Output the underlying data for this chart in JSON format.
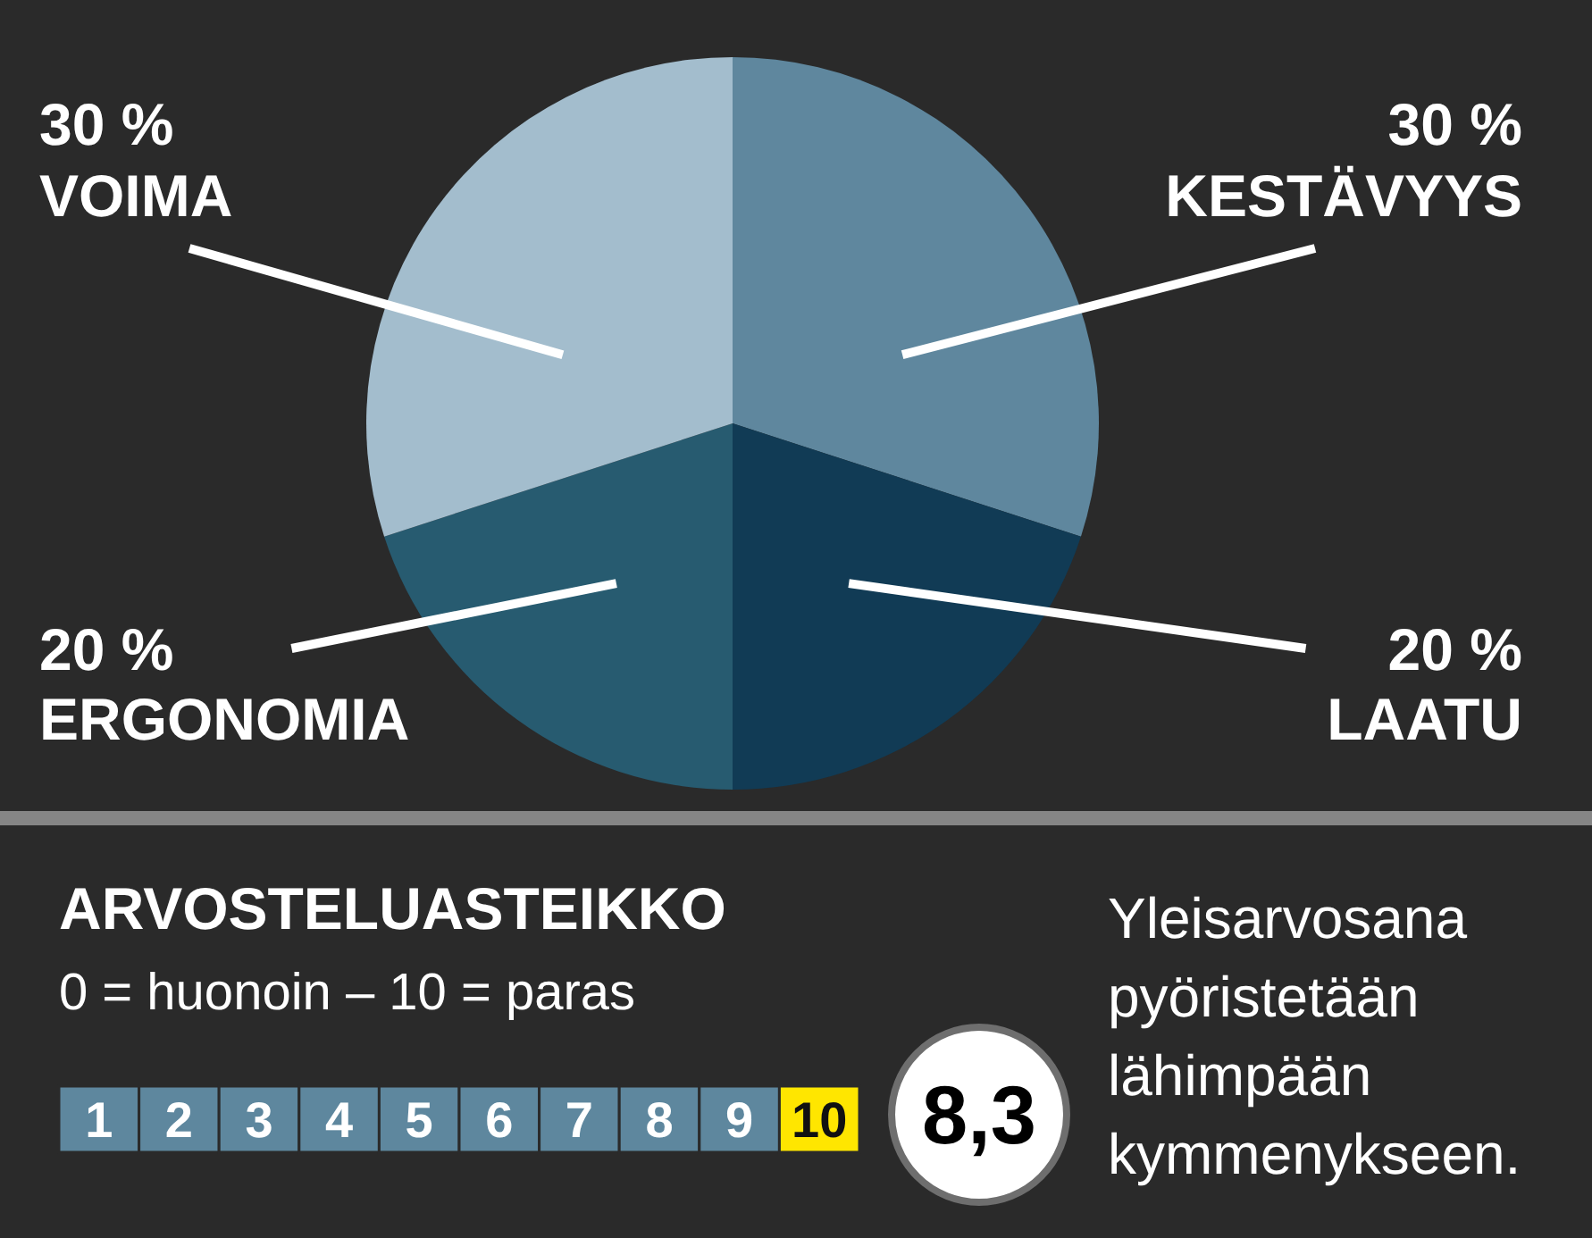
{
  "chart_data": [
    {
      "type": "pie",
      "categories": [
        "KESTÄVYYS",
        "LAATU",
        "ERGONOMIA",
        "VOIMA"
      ],
      "values": [
        30,
        20,
        20,
        30
      ],
      "colors": [
        "#5f879e",
        "#113b55",
        "#275b70",
        "#a3bdcd"
      ],
      "value_labels": [
        "30 %",
        "20 %",
        "20 %",
        "30 %"
      ]
    },
    {
      "type": "heatmap",
      "title": "ARVOSTELUASTEIKKO",
      "subtitle": "0 = huonoin – 10 = paras",
      "categories": [
        null,
        null,
        null,
        null,
        null,
        null,
        null,
        null,
        null,
        null
      ],
      "y_categories": [
        null
      ],
      "cells": [
        [
          1,
          2,
          3,
          4,
          5,
          6,
          7,
          8,
          9,
          10
        ]
      ],
      "data_labels": true,
      "colors": [
        "#5e879e",
        "#5e879e",
        "#5e879e",
        "#5e879e",
        "#5e879e",
        "#5e879e",
        "#5e879e",
        "#5e879e",
        "#5e879e",
        "#ffe600"
      ],
      "annotations": [
        "8,3",
        "Yleisarvosana pyöristetään lähimpään kymmenykseen."
      ]
    }
  ]
}
